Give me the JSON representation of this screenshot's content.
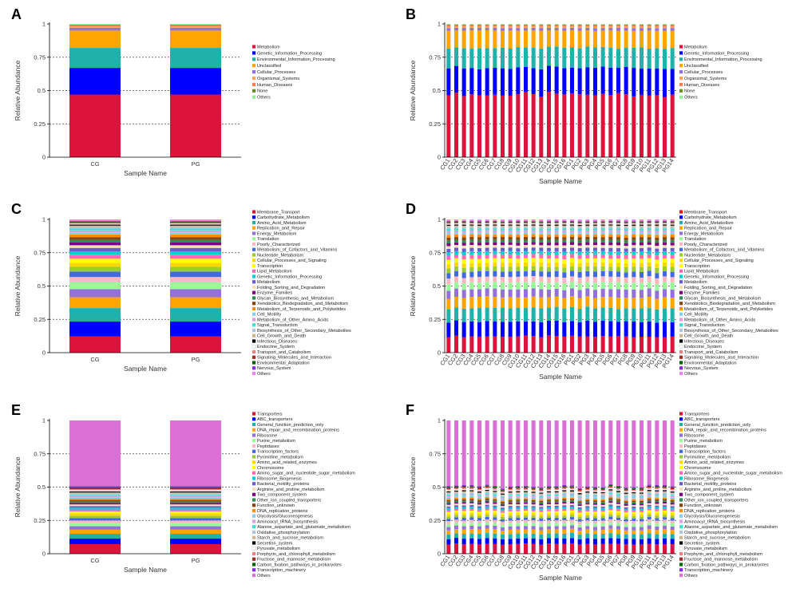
{
  "chart_data": [
    {
      "panel": "A",
      "type": "stacked-bar",
      "xlabel": "Sample Name",
      "ylabel": "Relative Abundance",
      "ylim": [
        0,
        1
      ],
      "yticks": [
        "0",
        "0.25",
        "0.5",
        "0.75",
        "1"
      ],
      "dashed_lines": [
        0.25,
        0.5,
        0.75
      ],
      "categories": [
        "CG",
        "PG"
      ],
      "series": [
        {
          "name": "Metabolism",
          "color": "#dc143c",
          "values": [
            0.47,
            0.47
          ]
        },
        {
          "name": "Genetic_Information_Processing",
          "color": "#0000ff",
          "values": [
            0.2,
            0.2
          ]
        },
        {
          "name": "Environmental_Information_Processing",
          "color": "#20b2aa",
          "values": [
            0.15,
            0.15
          ]
        },
        {
          "name": "Unclassified",
          "color": "#ffa500",
          "values": [
            0.13,
            0.13
          ]
        },
        {
          "name": "Cellular_Processes",
          "color": "#9370db",
          "values": [
            0.02,
            0.02
          ]
        },
        {
          "name": "Organismal_Systems",
          "color": "#f4a460",
          "values": [
            0.01,
            0.01
          ]
        },
        {
          "name": "Human_Diseases",
          "color": "#ff7f50",
          "values": [
            0.01,
            0.01
          ]
        },
        {
          "name": "None",
          "color": "#6b8e23",
          "values": [
            0.005,
            0.005
          ]
        },
        {
          "name": "Others",
          "color": "#90ee90",
          "values": [
            0.005,
            0.005
          ]
        }
      ]
    },
    {
      "panel": "B",
      "type": "stacked-bar",
      "xlabel": "Sample Name",
      "ylabel": "Relative Abundance",
      "ylim": [
        0,
        1
      ],
      "yticks": [
        "0",
        "0.25",
        "0.5",
        "0.75",
        "1"
      ],
      "dashed_lines": [
        0.25,
        0.5,
        0.75
      ],
      "categories": [
        "CG1",
        "CG2",
        "CG3",
        "CG4",
        "CG5",
        "CG6",
        "CG7",
        "CG8",
        "CG9",
        "CG10",
        "CG11",
        "CG12",
        "CG13",
        "CG14",
        "CG15",
        "CG16",
        "PG1",
        "PG2",
        "PG3",
        "PG4",
        "PG5",
        "PG6",
        "PG7",
        "PG8",
        "PG9",
        "PG10",
        "PG11",
        "PG12",
        "PG13",
        "PG14"
      ],
      "series_ref": "A",
      "legend": [
        "Metabolism",
        "Genetic_Information_Processing",
        "Environmental_Information_Processing",
        "Unclassified",
        "Cellular_Processes",
        "Organismal_Systems",
        "Human_Diseases",
        "None",
        "Others"
      ]
    },
    {
      "panel": "C",
      "type": "stacked-bar",
      "xlabel": "Sample Name",
      "ylabel": "Relative Abundance",
      "ylim": [
        0,
        1
      ],
      "yticks": [
        "0",
        "0.25",
        "0.5",
        "0.75",
        "1"
      ],
      "dashed_lines": [
        0.25,
        0.5,
        0.75
      ],
      "categories": [
        "CG",
        "PG"
      ],
      "series": [
        {
          "name": "Membrane_Transport",
          "color": "#dc143c",
          "values": [
            0.12,
            0.12
          ]
        },
        {
          "name": "Carbohydrate_Metabolism",
          "color": "#0000ff",
          "values": [
            0.11,
            0.11
          ]
        },
        {
          "name": "Amino_Acid_Metabolism",
          "color": "#20b2aa",
          "values": [
            0.1,
            0.1
          ]
        },
        {
          "name": "Replication_and_Repair",
          "color": "#ffa500",
          "values": [
            0.08,
            0.08
          ]
        },
        {
          "name": "Energy_Metabolism",
          "color": "#9370db",
          "values": [
            0.06,
            0.06
          ]
        },
        {
          "name": "Translation",
          "color": "#98fb98",
          "values": [
            0.05,
            0.05
          ]
        },
        {
          "name": "Poorly_Characterized",
          "color": "#ffb6c1",
          "values": [
            0.04,
            0.04
          ]
        },
        {
          "name": "Metabolism_of_Cofactors_and_Vitamins",
          "color": "#4169e1",
          "values": [
            0.04,
            0.04
          ]
        },
        {
          "name": "Nucleotide_Metabolism",
          "color": "#9acd32",
          "values": [
            0.035,
            0.035
          ]
        },
        {
          "name": "Cellular_Processes_and_Signaling",
          "color": "#ffd700",
          "values": [
            0.03,
            0.03
          ]
        },
        {
          "name": "Transcription",
          "color": "#ffff00",
          "values": [
            0.03,
            0.03
          ]
        },
        {
          "name": "Lipid_Metabolism",
          "color": "#ff69b4",
          "values": [
            0.03,
            0.03
          ]
        },
        {
          "name": "Genetic_Information_Processing",
          "color": "#00ced1",
          "values": [
            0.025,
            0.025
          ]
        },
        {
          "name": "Metabolism",
          "color": "#6a5acd",
          "values": [
            0.025,
            0.025
          ]
        },
        {
          "name": "Folding_Sorting_and_Degradation",
          "color": "#f5deb3",
          "values": [
            0.02,
            0.02
          ]
        },
        {
          "name": "Enzyme_Families",
          "color": "#800080",
          "values": [
            0.02,
            0.02
          ]
        },
        {
          "name": "Glycan_Biosynthesis_and_Metabolism",
          "color": "#2e8b57",
          "values": [
            0.02,
            0.02
          ]
        },
        {
          "name": "Xenobiotics_Biodegradation_and_Metabolism",
          "color": "#8b4513",
          "values": [
            0.02,
            0.02
          ]
        },
        {
          "name": "Metabolism_of_Terpenoids_and_Polyketides",
          "color": "#ff8c00",
          "values": [
            0.02,
            0.02
          ]
        },
        {
          "name": "Cell_Motility",
          "color": "#87ceeb",
          "values": [
            0.015,
            0.015
          ]
        },
        {
          "name": "Metabolism_of_Other_Amino_Acids",
          "color": "#dda0dd",
          "values": [
            0.015,
            0.015
          ]
        },
        {
          "name": "Signal_Transduction",
          "color": "#40e0d0",
          "values": [
            0.015,
            0.015
          ]
        },
        {
          "name": "Biosynthesis_of_Other_Secondary_Metabolites",
          "color": "#b0c4de",
          "values": [
            0.01,
            0.01
          ]
        },
        {
          "name": "Cell_Growth_and_Death",
          "color": "#d2b48c",
          "values": [
            0.01,
            0.01
          ]
        },
        {
          "name": "Infectious_Diseases",
          "color": "#000000",
          "values": [
            0.008,
            0.008
          ]
        },
        {
          "name": "Endocrine_System",
          "color": "#ffffff",
          "values": [
            0.006,
            0.006
          ]
        },
        {
          "name": "Transport_and_Catabolism",
          "color": "#f08080",
          "values": [
            0.006,
            0.006
          ]
        },
        {
          "name": "Signaling_Molecules_and_Interaction",
          "color": "#a52a2a",
          "values": [
            0.005,
            0.005
          ]
        },
        {
          "name": "Environmental_Adaptation",
          "color": "#006400",
          "values": [
            0.005,
            0.005
          ]
        },
        {
          "name": "Nervous_System",
          "color": "#8a2be2",
          "values": [
            0.004,
            0.004
          ]
        },
        {
          "name": "Others",
          "color": "#ee82ee",
          "values": [
            0.012,
            0.012
          ]
        }
      ]
    },
    {
      "panel": "D",
      "type": "stacked-bar",
      "xlabel": "Sample Name",
      "ylabel": "Relative Abundance",
      "ylim": [
        0,
        1
      ],
      "yticks": [
        "0",
        "0.25",
        "0.5",
        "0.75",
        "1"
      ],
      "dashed_lines": [
        0.25,
        0.5,
        0.75
      ],
      "categories": [
        "CG1",
        "CG2",
        "CG3",
        "CG4",
        "CG5",
        "CG6",
        "CG7",
        "CG8",
        "CG9",
        "CG10",
        "CG11",
        "CG12",
        "CG13",
        "CG14",
        "CG15",
        "CG16",
        "PG1",
        "PG2",
        "PG3",
        "PG4",
        "PG5",
        "PG6",
        "PG7",
        "PG8",
        "PG9",
        "PG10",
        "PG11",
        "PG12",
        "PG13",
        "PG14"
      ],
      "series_ref": "C",
      "legend": [
        "Membrane_Transport",
        "Carbohydrate_Metabolism",
        "Amino_Acid_Metabolism",
        "Replication_and_Repair",
        "Energy_Metabolism",
        "Translation",
        "Poorly_Characterized",
        "Metabolism_of_Cofactors_and_Vitamins",
        "Nucleotide_Metabolism",
        "Cellular_Processes_and_Signaling",
        "Transcription",
        "Lipid_Metabolism",
        "Genetic_Information_Processing",
        "Metabolism",
        "Folding_Sorting_and_Degradation",
        "Enzyme_Families",
        "Glycan_Biosynthesis_and_Metabolism",
        "Xenobiotics_Biodegradation_and_Metabolism",
        "Metabolism_of_Terpenoids_and_Polyketides",
        "Cell_Motility",
        "Metabolism_of_Other_Amino_Acids",
        "Signal_Transduction",
        "Biosynthesis_of_Other_Secondary_Metabolites",
        "Cell_Growth_and_Death",
        "Infectious_Diseases",
        "Endocrine_System",
        "Transport_and_Catabolism",
        "Signaling_Molecules_and_Interaction",
        "Environmental_Adaptation",
        "Nervous_System",
        "Others"
      ]
    },
    {
      "panel": "E",
      "type": "stacked-bar",
      "xlabel": "Sample Name",
      "ylabel": "Relative Abundance",
      "ylim": [
        0,
        1
      ],
      "yticks": [
        "0",
        "0.25",
        "0.5",
        "0.75",
        "1"
      ],
      "dashed_lines": [
        0.25,
        0.5,
        0.75
      ],
      "categories": [
        "CG",
        "PG"
      ],
      "series": [
        {
          "name": "Transporters",
          "color": "#dc143c",
          "values": [
            0.07,
            0.07
          ]
        },
        {
          "name": "ABC_transporters",
          "color": "#0000ff",
          "values": [
            0.04,
            0.04
          ]
        },
        {
          "name": "General_function_prediction_only",
          "color": "#20b2aa",
          "values": [
            0.035,
            0.035
          ]
        },
        {
          "name": "DNA_repair_and_recombination_proteins",
          "color": "#ffa500",
          "values": [
            0.03,
            0.03
          ]
        },
        {
          "name": "Ribosome",
          "color": "#9370db",
          "values": [
            0.025,
            0.025
          ]
        },
        {
          "name": "Purine_metabolism",
          "color": "#98fb98",
          "values": [
            0.022,
            0.022
          ]
        },
        {
          "name": "Peptidases",
          "color": "#ffb6c1",
          "values": [
            0.02,
            0.02
          ]
        },
        {
          "name": "Transcription_factors",
          "color": "#4169e1",
          "values": [
            0.018,
            0.018
          ]
        },
        {
          "name": "Pyrimidine_metabolism",
          "color": "#9acd32",
          "values": [
            0.017,
            0.017
          ]
        },
        {
          "name": "Amino_acid_related_enzymes",
          "color": "#ffd700",
          "values": [
            0.016,
            0.016
          ]
        },
        {
          "name": "Chromosome",
          "color": "#ffff00",
          "values": [
            0.015,
            0.015
          ]
        },
        {
          "name": "Amino_sugar_and_nucleotide_sugar_metabolism",
          "color": "#ff69b4",
          "values": [
            0.014,
            0.014
          ]
        },
        {
          "name": "Ribosome_Biogenesis",
          "color": "#00ced1",
          "values": [
            0.013,
            0.013
          ]
        },
        {
          "name": "Bacterial_motility_proteins",
          "color": "#6a5acd",
          "values": [
            0.012,
            0.012
          ]
        },
        {
          "name": "Arginine_and_proline_metabolism",
          "color": "#f5deb3",
          "values": [
            0.012,
            0.012
          ]
        },
        {
          "name": "Two_component_system",
          "color": "#800080",
          "values": [
            0.011,
            0.011
          ]
        },
        {
          "name": "Other_ion_coupled_transporters",
          "color": "#2e8b57",
          "values": [
            0.011,
            0.011
          ]
        },
        {
          "name": "Function_unknown",
          "color": "#8b4513",
          "values": [
            0.01,
            0.01
          ]
        },
        {
          "name": "DNA_replication_proteins",
          "color": "#ff8c00",
          "values": [
            0.01,
            0.01
          ]
        },
        {
          "name": "Glycolysis/Gluconeogenesis",
          "color": "#87ceeb",
          "values": [
            0.01,
            0.01
          ]
        },
        {
          "name": "Aminoacyl_tRNA_biosynthesis",
          "color": "#dda0dd",
          "values": [
            0.009,
            0.009
          ]
        },
        {
          "name": "Alanine_aspartate_and_glutamate_metabolism",
          "color": "#40e0d0",
          "values": [
            0.009,
            0.009
          ]
        },
        {
          "name": "Oxidative_phosphorylation",
          "color": "#b0c4de",
          "values": [
            0.009,
            0.009
          ]
        },
        {
          "name": "Starch_and_sucrose_metabolism",
          "color": "#d2b48c",
          "values": [
            0.008,
            0.008
          ]
        },
        {
          "name": "Secretion_system",
          "color": "#000000",
          "values": [
            0.008,
            0.008
          ]
        },
        {
          "name": "Pyruvate_metabolism",
          "color": "#ffffff",
          "values": [
            0.008,
            0.008
          ]
        },
        {
          "name": "Porphyrin_and_chlorophyll_metabolism",
          "color": "#f08080",
          "values": [
            0.008,
            0.008
          ]
        },
        {
          "name": "Fructose_and_mannose_metabolism",
          "color": "#a52a2a",
          "values": [
            0.007,
            0.007
          ]
        },
        {
          "name": "Carbon_fixation_pathways_in_prokaryotes",
          "color": "#006400",
          "values": [
            0.007,
            0.007
          ]
        },
        {
          "name": "Transcription_machinery",
          "color": "#8a2be2",
          "values": [
            0.007,
            0.007
          ]
        },
        {
          "name": "Others",
          "color": "#da70d6",
          "values": [
            0.479,
            0.479
          ]
        }
      ]
    },
    {
      "panel": "F",
      "type": "stacked-bar",
      "xlabel": "Sample Name",
      "ylabel": "Relative Abundance",
      "ylim": [
        0,
        1
      ],
      "yticks": [
        "0",
        "0.25",
        "0.5",
        "0.75",
        "1"
      ],
      "dashed_lines": [
        0.25,
        0.5,
        0.75
      ],
      "categories": [
        "CG1",
        "CG2",
        "CG3",
        "CG4",
        "CG5",
        "CG6",
        "CG7",
        "CG8",
        "CG9",
        "CG10",
        "CG11",
        "CG12",
        "CG13",
        "CG14",
        "CG15",
        "CG16",
        "PG1",
        "PG2",
        "PG3",
        "PG4",
        "PG5",
        "PG6",
        "PG7",
        "PG8",
        "PG9",
        "PG10",
        "PG11",
        "PG12",
        "PG13",
        "PG14"
      ],
      "series_ref": "E",
      "legend": [
        "Transporters",
        "ABC_transporters",
        "General_function_prediction_only",
        "DNA_repair_and_recombination_proteins",
        "Ribosome",
        "Purine_metabolism",
        "Peptidases",
        "Transcription_factors",
        "Pyrimidine_metabolism",
        "Amino_acid_related_enzymes",
        "Chromosome",
        "Amino_sugar_and_nucleotide_sugar_metabolism",
        "Ribosome_Biogenesis",
        "Bacterial_motility_proteins",
        "Arginine_and_proline_metabolism",
        "Two_component_system",
        "Other_ion_coupled_transporters",
        "Function_unknown",
        "DNA_replication_proteins",
        "Glycolysis/Gluconeogenesis",
        "Aminoacyl_tRNA_biosynthesis",
        "Alanine_aspartate_and_glutamate_metabolism",
        "Oxidative_phosphorylation",
        "Starch_and_sucrose_metabolism",
        "Secretion_system",
        "Pyruvate_metabolism",
        "Porphyrin_and_chlorophyll_metabolism",
        "Fructose_and_mannose_metabolism",
        "Carbon_fixation_pathways_in_prokaryotes",
        "Transcription_machinery",
        "Others"
      ]
    }
  ]
}
